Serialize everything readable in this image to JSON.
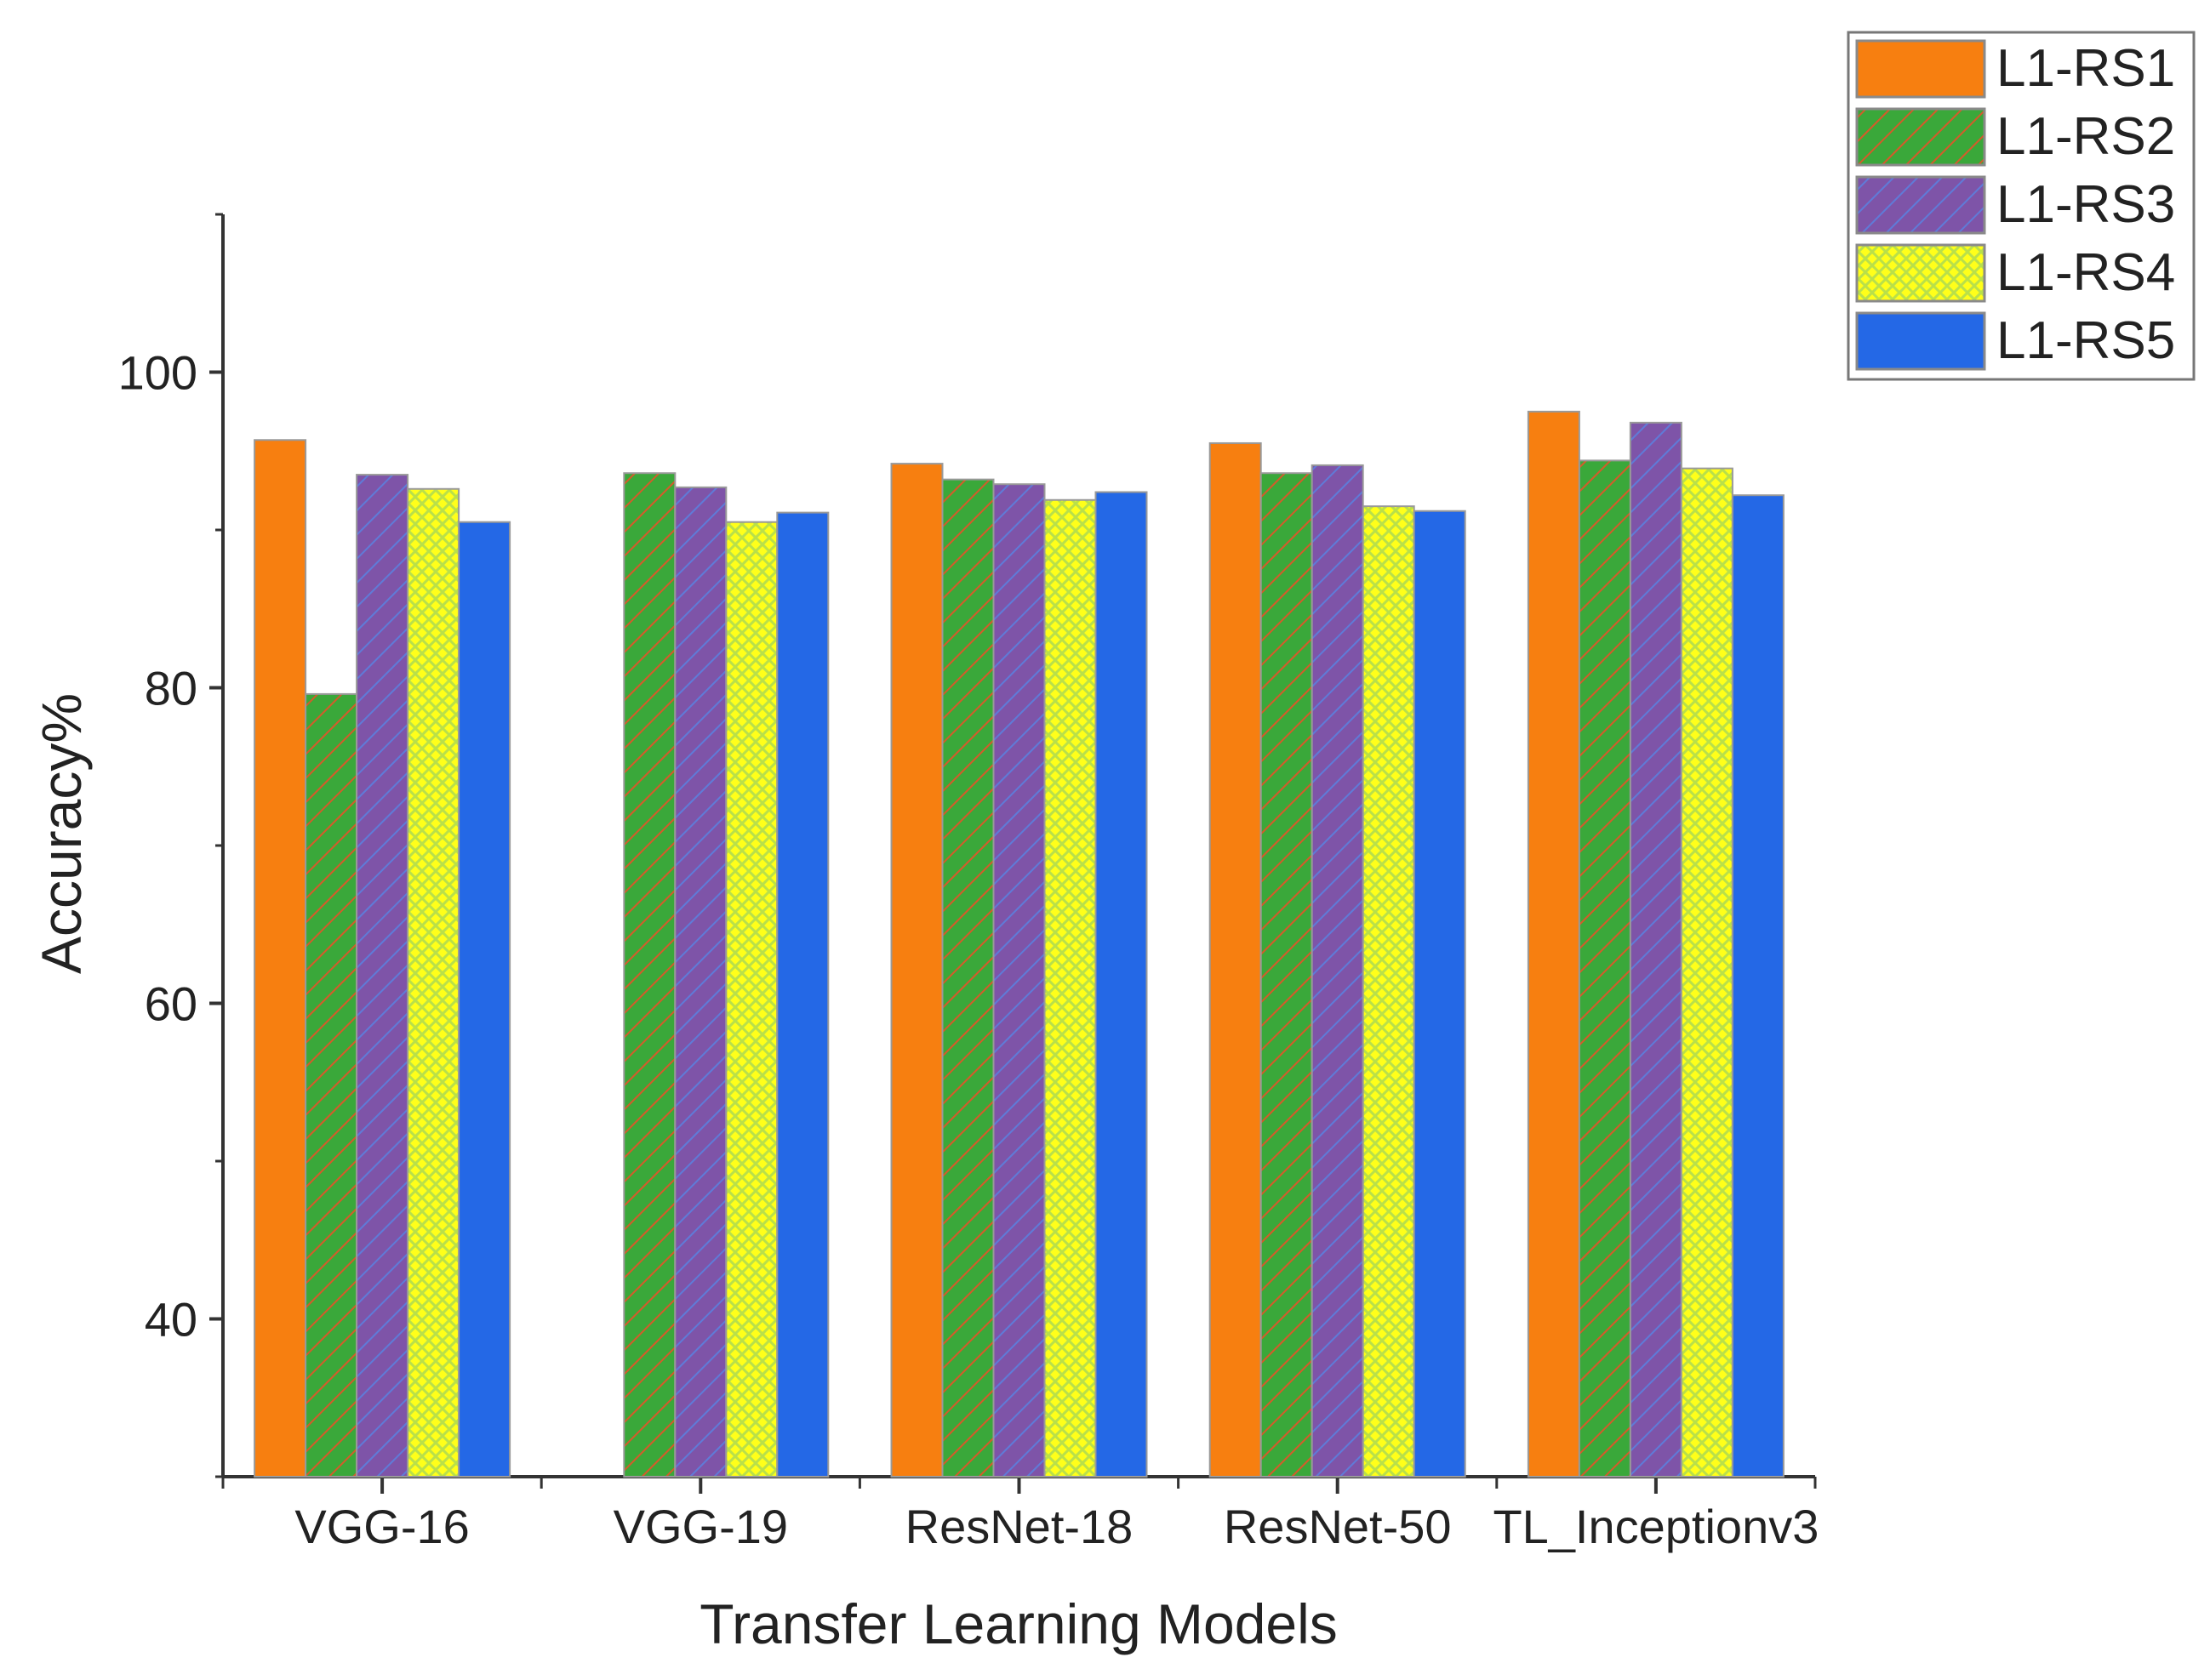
{
  "chart_data": {
    "type": "bar",
    "title": "",
    "xlabel": "Transfer Learning Models",
    "ylabel": "Accuracy%",
    "ylim": [
      30,
      110
    ],
    "yticks": [
      40,
      60,
      80,
      100
    ],
    "yticks_minor": [
      30,
      50,
      70,
      90,
      110
    ],
    "grid": false,
    "legend_position": "top-right",
    "categories": [
      "VGG-16",
      "VGG-19",
      "ResNet-18",
      "ResNet-50",
      "TL_Inceptionv3"
    ],
    "series": [
      {
        "name": "L1-RS1",
        "color": "#f77f10",
        "pattern": "solid",
        "values": [
          95.7,
          null,
          94.2,
          95.5,
          97.5
        ]
      },
      {
        "name": "L1-RS2",
        "color": "#3aa83a",
        "pattern": "diagonal-hatch",
        "values": [
          79.6,
          93.6,
          93.2,
          93.6,
          94.4
        ]
      },
      {
        "name": "L1-RS3",
        "color": "#7e54a8",
        "pattern": "diagonal-hatch",
        "values": [
          93.5,
          92.7,
          92.9,
          94.1,
          96.8
        ]
      },
      {
        "name": "L1-RS4",
        "color": "#ffff1a",
        "pattern": "crosshatch",
        "values": [
          92.6,
          90.5,
          91.9,
          91.5,
          93.9
        ]
      },
      {
        "name": "L1-RS5",
        "color": "#2468e6",
        "pattern": "solid",
        "values": [
          90.5,
          91.1,
          92.4,
          91.2,
          92.2
        ]
      }
    ]
  }
}
